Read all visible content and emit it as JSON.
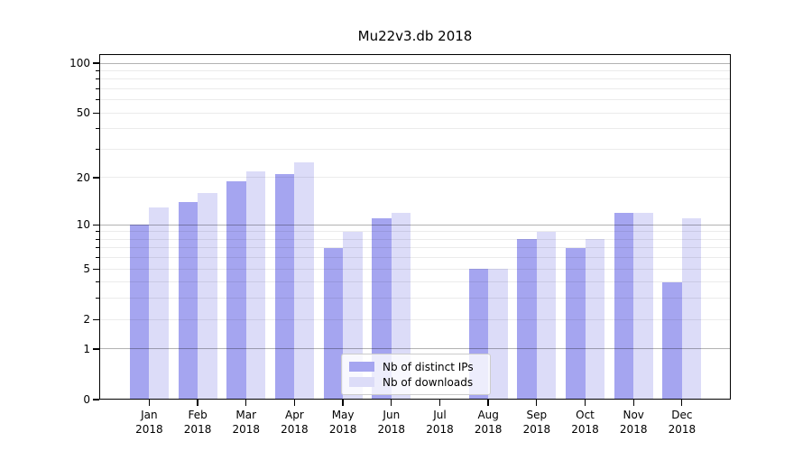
{
  "chart_data": {
    "type": "bar",
    "title": "Mu22v3.db 2018",
    "categories": [
      {
        "month": "Jan",
        "year": "2018"
      },
      {
        "month": "Feb",
        "year": "2018"
      },
      {
        "month": "Mar",
        "year": "2018"
      },
      {
        "month": "Apr",
        "year": "2018"
      },
      {
        "month": "May",
        "year": "2018"
      },
      {
        "month": "Jun",
        "year": "2018"
      },
      {
        "month": "Jul",
        "year": "2018"
      },
      {
        "month": "Aug",
        "year": "2018"
      },
      {
        "month": "Sep",
        "year": "2018"
      },
      {
        "month": "Oct",
        "year": "2018"
      },
      {
        "month": "Nov",
        "year": "2018"
      },
      {
        "month": "Dec",
        "year": "2018"
      }
    ],
    "series": [
      {
        "name": "Nb of distinct IPs",
        "color": "#a5a5f0",
        "values": [
          10,
          14,
          19,
          21,
          7,
          11,
          0,
          5,
          8,
          7,
          12,
          4
        ]
      },
      {
        "name": "Nb of downloads",
        "color": "#dcdcf8",
        "values": [
          13,
          16,
          22,
          25,
          9,
          12,
          0,
          5,
          9,
          8,
          12,
          11
        ]
      }
    ],
    "yscale": "log1p",
    "ylim": [
      0,
      113.4
    ],
    "y_ticks": [
      0,
      1,
      2,
      5,
      10,
      20,
      50,
      100
    ],
    "y_grid_major": [
      1,
      10,
      100
    ],
    "y_grid_minor": [
      2,
      3,
      4,
      5,
      6,
      7,
      8,
      9,
      20,
      30,
      40,
      50,
      60,
      70,
      80,
      90
    ],
    "grid": "both",
    "legend_position": "lower-center",
    "colors": {
      "grid_major": "rgba(0,0,0,0.30)",
      "grid_minor": "rgba(0,0,0,0.08)",
      "axis": "#000000",
      "legend_border": "#cccccc",
      "background": "#ffffff"
    }
  }
}
